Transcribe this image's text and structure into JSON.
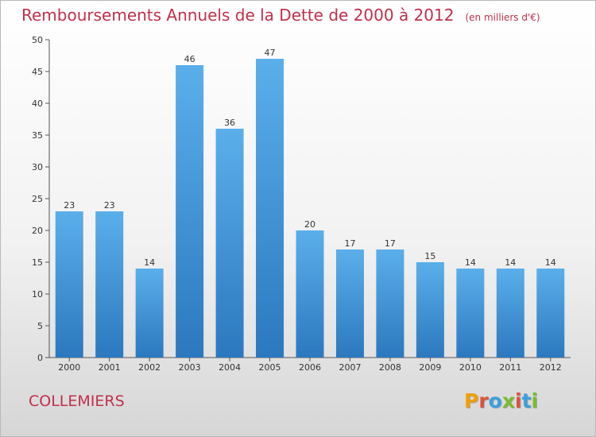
{
  "header": {
    "title": "Remboursements Annuels de la Dette de 2000 à 2012",
    "unit": "(en milliers d'€)"
  },
  "footer": {
    "town": "COLLEMIERS",
    "logo_letters": [
      "P",
      "r",
      "o",
      "x",
      "i",
      "t",
      "i"
    ]
  },
  "colors": {
    "title": "#c0304b",
    "bar_top": "#5aafea",
    "bar_bottom": "#2c78bf",
    "logo": [
      "#f0a000",
      "#e0503a",
      "#3aa0e0",
      "#7abc2e",
      "#e0503a",
      "#3aa0e0",
      "#7abc2e"
    ]
  },
  "chart_data": {
    "type": "bar",
    "title": "Remboursements Annuels de la Dette de 2000 à 2012",
    "xlabel": "",
    "ylabel": "",
    "categories": [
      "2000",
      "2001",
      "2002",
      "2003",
      "2004",
      "2005",
      "2006",
      "2007",
      "2008",
      "2009",
      "2010",
      "2011",
      "2012"
    ],
    "values": [
      23,
      23,
      14,
      46,
      36,
      47,
      20,
      17,
      17,
      15,
      14,
      14,
      14
    ],
    "ylim": [
      0,
      50
    ],
    "yticks": [
      0,
      5,
      10,
      15,
      20,
      25,
      30,
      35,
      40,
      45,
      50
    ],
    "data_labels": true,
    "grid": false
  }
}
